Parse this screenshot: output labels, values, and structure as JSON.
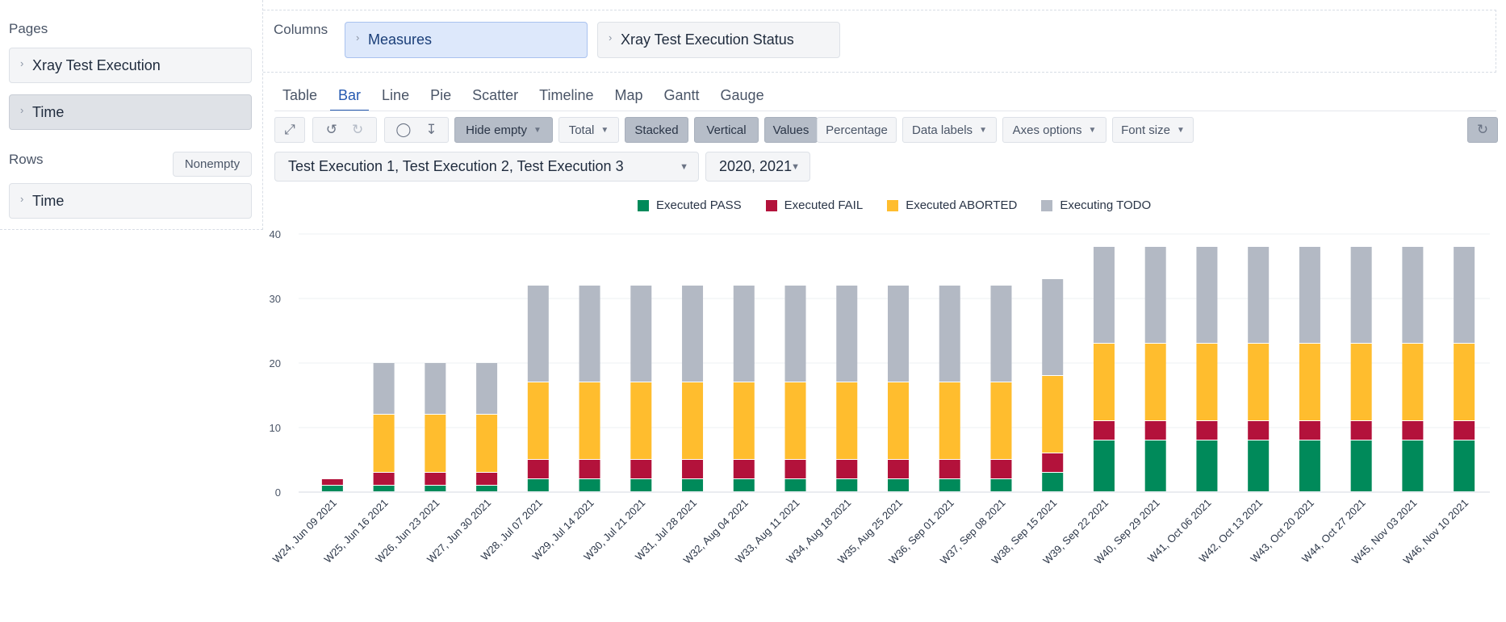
{
  "sidebar": {
    "pages_title": "Pages",
    "pages": [
      "Xray Test Execution",
      "Time"
    ],
    "rows_title": "Rows",
    "nonempty_label": "Nonempty",
    "rows": [
      "Time"
    ]
  },
  "columns": {
    "title": "Columns",
    "items": [
      "Measures",
      "Xray Test Execution Status"
    ]
  },
  "tabs": [
    "Table",
    "Bar",
    "Line",
    "Pie",
    "Scatter",
    "Timeline",
    "Map",
    "Gantt",
    "Gauge"
  ],
  "active_tab": "Bar",
  "toolbar": {
    "hide_empty": "Hide empty",
    "total": "Total",
    "stacked": "Stacked",
    "vertical": "Vertical",
    "values": "Values",
    "percentage": "Percentage",
    "data_labels": "Data labels",
    "axes_options": "Axes options",
    "font_size": "Font size",
    "icons": [
      "fullscreen-icon",
      "undo-icon",
      "redo-icon",
      "comment-icon",
      "export-icon",
      "refresh-icon"
    ]
  },
  "filters": {
    "executions": "Test Execution 1, Test Execution 2, Test Execution 3",
    "years": "2020, 2021"
  },
  "chart_data": {
    "type": "bar",
    "stacked": true,
    "ylim": [
      0,
      40
    ],
    "yticks": [
      0,
      10,
      20,
      30,
      40
    ],
    "grid": true,
    "legend_position": "top",
    "categories": [
      "W24, Jun 09 2021",
      "W25, Jun 16 2021",
      "W26, Jun 23 2021",
      "W27, Jun 30 2021",
      "W28, Jul 07 2021",
      "W29, Jul 14 2021",
      "W30, Jul 21 2021",
      "W31, Jul 28 2021",
      "W32, Aug 04 2021",
      "W33, Aug 11 2021",
      "W34, Aug 18 2021",
      "W35, Aug 25 2021",
      "W36, Sep 01 2021",
      "W37, Sep 08 2021",
      "W38, Sep 15 2021",
      "W39, Sep 22 2021",
      "W40, Sep 29 2021",
      "W41, Oct 06 2021",
      "W42, Oct 13 2021",
      "W43, Oct 20 2021",
      "W44, Oct 27 2021",
      "W45, Nov 03 2021",
      "W46, Nov 10 2021"
    ],
    "series": [
      {
        "name": "Executed PASS",
        "color": "#008a5a",
        "values": [
          1,
          1,
          1,
          1,
          2,
          2,
          2,
          2,
          2,
          2,
          2,
          2,
          2,
          2,
          3,
          8,
          8,
          8,
          8,
          8,
          8,
          8,
          8
        ]
      },
      {
        "name": "Executed FAIL",
        "color": "#b3123b",
        "values": [
          1,
          2,
          2,
          2,
          3,
          3,
          3,
          3,
          3,
          3,
          3,
          3,
          3,
          3,
          3,
          3,
          3,
          3,
          3,
          3,
          3,
          3,
          3
        ]
      },
      {
        "name": "Executed ABORTED",
        "color": "#ffbd2e",
        "values": [
          0,
          9,
          9,
          9,
          12,
          12,
          12,
          12,
          12,
          12,
          12,
          12,
          12,
          12,
          12,
          12,
          12,
          12,
          12,
          12,
          12,
          12,
          12
        ]
      },
      {
        "name": "Executing TODO",
        "color": "#b3b9c4",
        "values": [
          0,
          8,
          8,
          8,
          15,
          15,
          15,
          15,
          15,
          15,
          15,
          15,
          15,
          15,
          15,
          15,
          15,
          15,
          15,
          15,
          15,
          15,
          15
        ]
      }
    ]
  }
}
